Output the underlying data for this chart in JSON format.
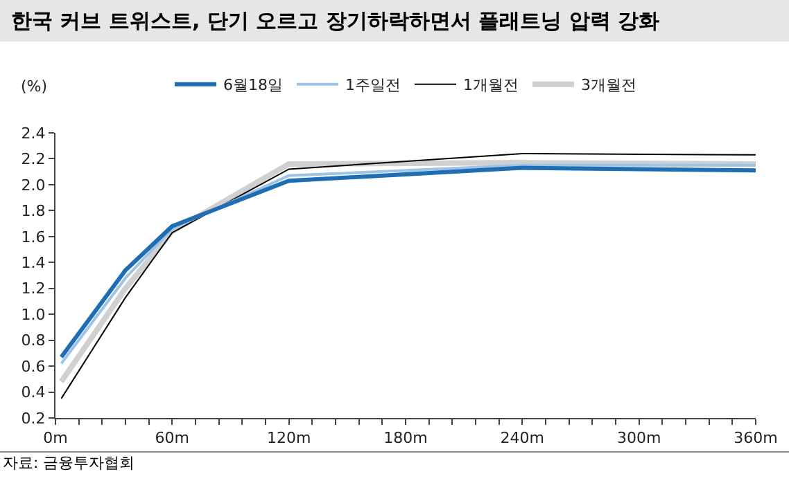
{
  "chart_data": {
    "type": "line",
    "title": "한국 커브 트위스트, 단기 오르고 장기하락하면서 플래트닝 압력 강화",
    "ylabel": "(%)",
    "annotations": [
      "자료: 금융투자협회"
    ],
    "x": [
      3,
      36,
      60,
      120,
      240,
      360
    ],
    "series": [
      {
        "name": "6월18일",
        "color": "#1f6eb4",
        "values": [
          0.67,
          1.34,
          1.68,
          2.03,
          2.13,
          2.11
        ]
      },
      {
        "name": "1주일전",
        "color": "#9dc3e6",
        "values": [
          0.62,
          1.28,
          1.66,
          2.07,
          2.15,
          2.15
        ]
      },
      {
        "name": "1개월전",
        "color": "#000000",
        "values": [
          0.35,
          1.13,
          1.63,
          2.12,
          2.24,
          2.23
        ]
      },
      {
        "name": "3개월전",
        "color": "#d0d0d0",
        "values": [
          0.48,
          1.2,
          1.64,
          2.16,
          2.17,
          2.16
        ]
      }
    ],
    "xlim": [
      0,
      360
    ],
    "xticks": [
      {
        "value": 0,
        "label": "0m"
      },
      {
        "value": 12,
        "label": null
      },
      {
        "value": 24,
        "label": null
      },
      {
        "value": 36,
        "label": null
      },
      {
        "value": 48,
        "label": null
      },
      {
        "value": 60,
        "label": "60m"
      },
      {
        "value": 72,
        "label": null
      },
      {
        "value": 84,
        "label": null
      },
      {
        "value": 96,
        "label": null
      },
      {
        "value": 108,
        "label": null
      },
      {
        "value": 120,
        "label": "120m"
      },
      {
        "value": 132,
        "label": null
      },
      {
        "value": 144,
        "label": null
      },
      {
        "value": 156,
        "label": null
      },
      {
        "value": 168,
        "label": null
      },
      {
        "value": 180,
        "label": "180m"
      },
      {
        "value": 192,
        "label": null
      },
      {
        "value": 204,
        "label": null
      },
      {
        "value": 216,
        "label": null
      },
      {
        "value": 228,
        "label": null
      },
      {
        "value": 240,
        "label": "240m"
      },
      {
        "value": 252,
        "label": null
      },
      {
        "value": 264,
        "label": null
      },
      {
        "value": 276,
        "label": null
      },
      {
        "value": 288,
        "label": null
      },
      {
        "value": 300,
        "label": "300m"
      },
      {
        "value": 312,
        "label": null
      },
      {
        "value": 324,
        "label": null
      },
      {
        "value": 336,
        "label": null
      },
      {
        "value": 348,
        "label": null
      },
      {
        "value": 360,
        "label": "360m"
      }
    ],
    "ylim": [
      0.2,
      2.4
    ],
    "yticks": [
      {
        "value": 0.2,
        "label": "0.2"
      },
      {
        "value": 0.4,
        "label": "0.4"
      },
      {
        "value": 0.6,
        "label": "0.6"
      },
      {
        "value": 0.8,
        "label": "0.8"
      },
      {
        "value": 1.0,
        "label": "1.0"
      },
      {
        "value": 1.2,
        "label": "1.2"
      },
      {
        "value": 1.4,
        "label": "1.4"
      },
      {
        "value": 1.6,
        "label": "1.6"
      },
      {
        "value": 1.8,
        "label": "1.8"
      },
      {
        "value": 2.0,
        "label": "2.0"
      },
      {
        "value": 2.2,
        "label": "2.2"
      },
      {
        "value": 2.4,
        "label": "2.4"
      }
    ],
    "grid": false,
    "legend": "top",
    "marker": "none",
    "line_style": "solid"
  }
}
